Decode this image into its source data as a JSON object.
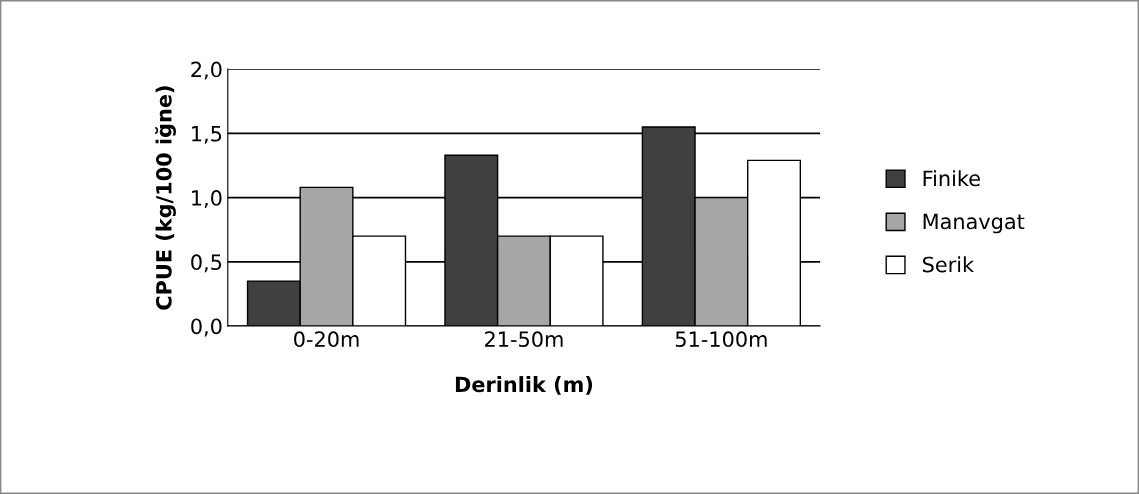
{
  "chart_data": {
    "type": "bar",
    "xlabel": "Derinlik (m)",
    "ylabel": "CPUE (kg/100 iğne)",
    "categories": [
      "0-20m",
      "21-50m",
      "51-100m"
    ],
    "series": [
      {
        "name": "Finike",
        "color": "#404040",
        "values": [
          0.35,
          1.33,
          1.55
        ]
      },
      {
        "name": "Manavgat",
        "color": "#a6a6a6",
        "values": [
          1.08,
          0.7,
          1.0
        ]
      },
      {
        "name": "Serik",
        "color": "#ffffff",
        "values": [
          0.7,
          0.7,
          1.29
        ]
      }
    ],
    "ylim": [
      0,
      2
    ],
    "yticks": [
      {
        "value": 0,
        "label": "0,0"
      },
      {
        "value": 0.5,
        "label": "0,5"
      },
      {
        "value": 1,
        "label": "1,0"
      },
      {
        "value": 1.5,
        "label": "1,5"
      },
      {
        "value": 2,
        "label": "2,0"
      }
    ],
    "grid": "y",
    "legend": "right"
  }
}
